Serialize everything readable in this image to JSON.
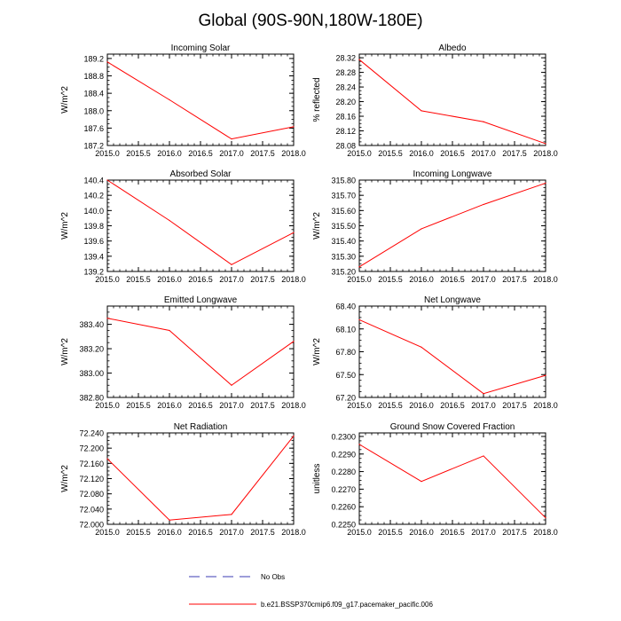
{
  "figure": {
    "title": "Global (90S-90N,180W-180E)",
    "line_color": "#ff0000",
    "obs_color": "#3b3bb3",
    "legend": {
      "obs_label": "No Obs",
      "model_label": "b.e21.BSSP370cmip6.f09_g17.pacemaker_pacific.006"
    }
  },
  "chart_data": [
    {
      "type": "line",
      "title": "Incoming Solar",
      "xlabel": "",
      "ylabel": "W/m^2",
      "x": [
        2015.0,
        2016.0,
        2017.0,
        2018.0
      ],
      "values": [
        189.12,
        188.25,
        187.35,
        187.63
      ],
      "xlim": [
        2015.0,
        2018.0
      ],
      "ylim": [
        187.2,
        189.3
      ],
      "xticks": [
        "2015.0",
        "2015.5",
        "2016.0",
        "2016.5",
        "2017.0",
        "2017.5",
        "2018.0"
      ],
      "yticks": [
        "187.2",
        "187.6",
        "188.0",
        "188.4",
        "188.8",
        "189.2"
      ]
    },
    {
      "type": "line",
      "title": "Albedo",
      "xlabel": "",
      "ylabel": "% reflected",
      "x": [
        2015.0,
        2016.0,
        2017.0,
        2018.0
      ],
      "values": [
        28.315,
        28.175,
        28.145,
        28.085
      ],
      "xlim": [
        2015.0,
        2018.0
      ],
      "ylim": [
        28.08,
        28.33
      ],
      "xticks": [
        "2015.0",
        "2015.5",
        "2016.0",
        "2016.5",
        "2017.0",
        "2017.5",
        "2018.0"
      ],
      "yticks": [
        "28.08",
        "28.12",
        "28.16",
        "28.20",
        "28.24",
        "28.28",
        "28.32"
      ]
    },
    {
      "type": "line",
      "title": "Absorbed Solar",
      "xlabel": "",
      "ylabel": "W/m^2",
      "x": [
        2015.0,
        2016.0,
        2017.0,
        2018.0
      ],
      "values": [
        140.4,
        139.87,
        139.29,
        139.71
      ],
      "xlim": [
        2015.0,
        2018.0
      ],
      "ylim": [
        139.2,
        140.4
      ],
      "xticks": [
        "2015.0",
        "2015.5",
        "2016.0",
        "2016.5",
        "2017.0",
        "2017.5",
        "2018.0"
      ],
      "yticks": [
        "139.2",
        "139.4",
        "139.6",
        "139.8",
        "140.0",
        "140.2",
        "140.4"
      ]
    },
    {
      "type": "line",
      "title": "Incoming Longwave",
      "xlabel": "",
      "ylabel": "W/m^2",
      "x": [
        2015.0,
        2016.0,
        2017.0,
        2018.0
      ],
      "values": [
        315.23,
        315.48,
        315.64,
        315.78
      ],
      "xlim": [
        2015.0,
        2018.0
      ],
      "ylim": [
        315.2,
        315.8
      ],
      "xticks": [
        "2015.0",
        "2015.5",
        "2016.0",
        "2016.5",
        "2017.0",
        "2017.5",
        "2018.0"
      ],
      "yticks": [
        "315.20",
        "315.30",
        "315.40",
        "315.50",
        "315.60",
        "315.70",
        "315.80"
      ]
    },
    {
      "type": "line",
      "title": "Emitted Longwave",
      "xlabel": "",
      "ylabel": "W/m^2",
      "x": [
        2015.0,
        2016.0,
        2017.0,
        2018.0
      ],
      "values": [
        383.45,
        383.35,
        382.9,
        383.26
      ],
      "xlim": [
        2015.0,
        2018.0
      ],
      "ylim": [
        382.8,
        383.55
      ],
      "xticks": [
        "2015.0",
        "2015.5",
        "2016.0",
        "2016.5",
        "2017.0",
        "2017.5",
        "2018.0"
      ],
      "yticks": [
        "382.80",
        "383.00",
        "383.20",
        "383.40"
      ]
    },
    {
      "type": "line",
      "title": "Net Longwave",
      "xlabel": "",
      "ylabel": "W/m^2",
      "x": [
        2015.0,
        2016.0,
        2017.0,
        2018.0
      ],
      "values": [
        68.22,
        67.86,
        67.25,
        67.49
      ],
      "xlim": [
        2015.0,
        2018.0
      ],
      "ylim": [
        67.2,
        68.4
      ],
      "xticks": [
        "2015.0",
        "2015.5",
        "2016.0",
        "2016.5",
        "2017.0",
        "2017.5",
        "2018.0"
      ],
      "yticks": [
        "67.20",
        "67.50",
        "67.80",
        "68.10",
        "68.40"
      ]
    },
    {
      "type": "line",
      "title": "Net Radiation",
      "xlabel": "",
      "ylabel": "W/m^2",
      "x": [
        2015.0,
        2016.0,
        2017.0,
        2018.0
      ],
      "values": [
        72.172,
        72.011,
        72.026,
        72.232
      ],
      "xlim": [
        2015.0,
        2018.0
      ],
      "ylim": [
        72.0,
        72.24
      ],
      "xticks": [
        "2015.0",
        "2015.5",
        "2016.0",
        "2016.5",
        "2017.0",
        "2017.5",
        "2018.0"
      ],
      "yticks": [
        "72.000",
        "72.040",
        "72.080",
        "72.120",
        "72.160",
        "72.200",
        "72.240"
      ]
    },
    {
      "type": "line",
      "title": "Ground Snow Covered Fraction",
      "xlabel": "",
      "ylabel": "unitless",
      "x": [
        2015.0,
        2016.0,
        2017.0,
        2018.0
      ],
      "values": [
        0.22955,
        0.22744,
        0.22889,
        0.22537
      ],
      "xlim": [
        2015.0,
        2018.0
      ],
      "ylim": [
        0.225,
        0.2302
      ],
      "xticks": [
        "2015.0",
        "2015.5",
        "2016.0",
        "2016.5",
        "2017.0",
        "2017.5",
        "2018.0"
      ],
      "yticks": [
        "0.2250",
        "0.2260",
        "0.2270",
        "0.2280",
        "0.2290",
        "0.2300"
      ]
    }
  ]
}
